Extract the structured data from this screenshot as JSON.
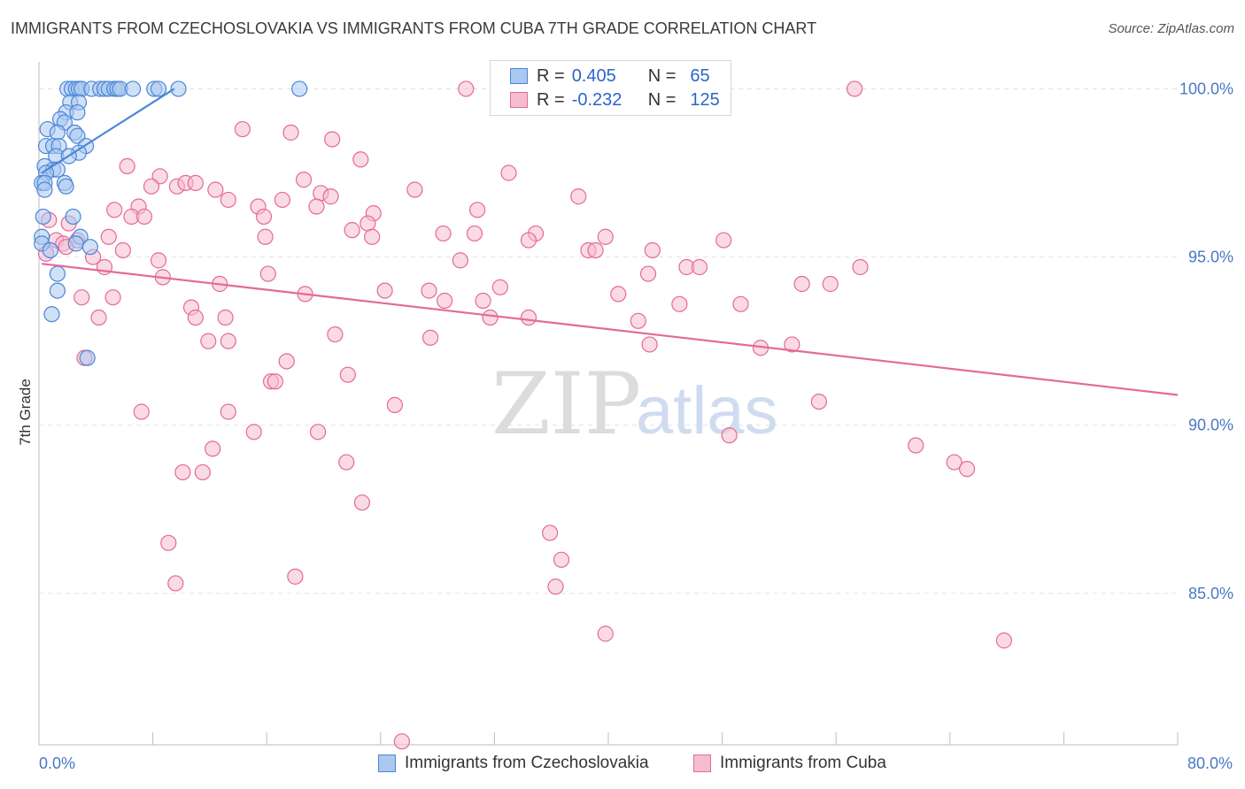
{
  "title": "IMMIGRANTS FROM CZECHOSLOVAKIA VS IMMIGRANTS FROM CUBA 7TH GRADE CORRELATION CHART",
  "source": "Source: ZipAtlas.com",
  "watermark": {
    "zip": "ZIP",
    "atlas": "atlas"
  },
  "legend": {
    "r_label": "R =",
    "n_label": "N =",
    "series": [
      {
        "r": "0.405",
        "n": "65",
        "color": "#4a86d6",
        "fill": "#aac8f0"
      },
      {
        "r": "-0.232",
        "n": "125",
        "color": "#e36a98",
        "fill": "#f6bcd0"
      }
    ]
  },
  "chart_data": {
    "type": "scatter",
    "xlabel": "",
    "ylabel": "7th Grade",
    "xlim": [
      0,
      80
    ],
    "ylim": [
      80.5,
      100.8
    ],
    "x_tick_labels": [
      "0.0%",
      "80.0%"
    ],
    "y_ticks": [
      85,
      90,
      95,
      100
    ],
    "y_tick_labels": [
      "85.0%",
      "90.0%",
      "95.0%",
      "100.0%"
    ],
    "grid": true,
    "series": [
      {
        "name": "Immigrants from Czechoslovakia",
        "color": "#4a86d6",
        "fill": "#aac8f0",
        "trend": {
          "x": [
            0.2,
            9.5
          ],
          "y": [
            97.5,
            100.0
          ]
        },
        "points": [
          [
            2.0,
            100.0
          ],
          [
            2.3,
            100.0
          ],
          [
            2.6,
            100.0
          ],
          [
            2.8,
            100.0
          ],
          [
            3.0,
            100.0
          ],
          [
            3.7,
            100.0
          ],
          [
            4.3,
            100.0
          ],
          [
            4.6,
            100.0
          ],
          [
            4.9,
            100.0
          ],
          [
            5.3,
            100.0
          ],
          [
            5.5,
            100.0
          ],
          [
            5.7,
            100.0
          ],
          [
            6.6,
            100.0
          ],
          [
            8.1,
            100.0
          ],
          [
            8.4,
            100.0
          ],
          [
            9.8,
            100.0
          ],
          [
            18.3,
            100.0
          ],
          [
            2.2,
            99.6
          ],
          [
            2.8,
            99.6
          ],
          [
            1.9,
            99.3
          ],
          [
            2.7,
            99.3
          ],
          [
            1.5,
            99.1
          ],
          [
            1.8,
            99.0
          ],
          [
            0.6,
            98.8
          ],
          [
            1.3,
            98.7
          ],
          [
            2.5,
            98.7
          ],
          [
            2.7,
            98.6
          ],
          [
            0.5,
            98.3
          ],
          [
            1.0,
            98.3
          ],
          [
            1.4,
            98.3
          ],
          [
            3.3,
            98.3
          ],
          [
            2.8,
            98.1
          ],
          [
            1.2,
            98.0
          ],
          [
            2.1,
            98.0
          ],
          [
            0.4,
            97.7
          ],
          [
            1.0,
            97.6
          ],
          [
            1.3,
            97.6
          ],
          [
            0.5,
            97.5
          ],
          [
            0.2,
            97.2
          ],
          [
            0.4,
            97.2
          ],
          [
            1.8,
            97.2
          ],
          [
            1.9,
            97.1
          ],
          [
            0.4,
            97.0
          ],
          [
            0.3,
            96.2
          ],
          [
            2.4,
            96.2
          ],
          [
            0.2,
            95.6
          ],
          [
            2.9,
            95.6
          ],
          [
            0.2,
            95.4
          ],
          [
            2.6,
            95.4
          ],
          [
            3.6,
            95.3
          ],
          [
            0.8,
            95.2
          ],
          [
            1.3,
            94.5
          ],
          [
            1.3,
            94.0
          ],
          [
            0.9,
            93.3
          ],
          [
            3.4,
            92.0
          ]
        ]
      },
      {
        "name": "Immigrants from Cuba",
        "color": "#e36a98",
        "fill": "#f6bcd0",
        "trend": {
          "x": [
            0.2,
            80.0
          ],
          "y": [
            94.8,
            90.9
          ]
        },
        "points": [
          [
            30.0,
            100.0
          ],
          [
            57.3,
            100.0
          ],
          [
            14.3,
            98.8
          ],
          [
            17.7,
            98.7
          ],
          [
            20.6,
            98.5
          ],
          [
            22.6,
            97.9
          ],
          [
            6.2,
            97.7
          ],
          [
            33.0,
            97.5
          ],
          [
            8.5,
            97.4
          ],
          [
            18.6,
            97.3
          ],
          [
            7.9,
            97.1
          ],
          [
            9.7,
            97.1
          ],
          [
            10.3,
            97.2
          ],
          [
            11.0,
            97.2
          ],
          [
            12.4,
            97.0
          ],
          [
            19.8,
            96.9
          ],
          [
            26.4,
            97.0
          ],
          [
            20.5,
            96.8
          ],
          [
            13.3,
            96.7
          ],
          [
            17.1,
            96.7
          ],
          [
            37.9,
            96.8
          ],
          [
            5.3,
            96.4
          ],
          [
            7.0,
            96.5
          ],
          [
            15.4,
            96.5
          ],
          [
            19.5,
            96.5
          ],
          [
            30.8,
            96.4
          ],
          [
            6.5,
            96.2
          ],
          [
            7.4,
            96.2
          ],
          [
            15.8,
            96.2
          ],
          [
            23.5,
            96.3
          ],
          [
            0.7,
            96.1
          ],
          [
            2.1,
            96.0
          ],
          [
            23.1,
            96.0
          ],
          [
            22.0,
            95.8
          ],
          [
            28.4,
            95.7
          ],
          [
            30.6,
            95.7
          ],
          [
            34.9,
            95.7
          ],
          [
            4.9,
            95.6
          ],
          [
            15.9,
            95.6
          ],
          [
            23.4,
            95.6
          ],
          [
            1.2,
            95.5
          ],
          [
            2.7,
            95.5
          ],
          [
            34.4,
            95.5
          ],
          [
            39.8,
            95.6
          ],
          [
            48.1,
            95.5
          ],
          [
            1.7,
            95.4
          ],
          [
            1.9,
            95.3
          ],
          [
            5.9,
            95.2
          ],
          [
            38.6,
            95.2
          ],
          [
            39.1,
            95.2
          ],
          [
            43.1,
            95.2
          ],
          [
            0.5,
            95.1
          ],
          [
            3.8,
            95.0
          ],
          [
            29.6,
            94.9
          ],
          [
            8.4,
            94.9
          ],
          [
            4.6,
            94.7
          ],
          [
            45.5,
            94.7
          ],
          [
            46.4,
            94.7
          ],
          [
            57.7,
            94.7
          ],
          [
            16.1,
            94.5
          ],
          [
            42.8,
            94.5
          ],
          [
            8.7,
            94.4
          ],
          [
            12.7,
            94.2
          ],
          [
            32.4,
            94.1
          ],
          [
            53.6,
            94.2
          ],
          [
            55.6,
            94.2
          ],
          [
            24.3,
            94.0
          ],
          [
            27.4,
            94.0
          ],
          [
            18.7,
            93.9
          ],
          [
            40.7,
            93.9
          ],
          [
            3.0,
            93.8
          ],
          [
            5.2,
            93.8
          ],
          [
            28.5,
            93.7
          ],
          [
            31.2,
            93.7
          ],
          [
            45.0,
            93.6
          ],
          [
            49.3,
            93.6
          ],
          [
            10.7,
            93.5
          ],
          [
            4.2,
            93.2
          ],
          [
            11.0,
            93.2
          ],
          [
            13.1,
            93.2
          ],
          [
            31.7,
            93.2
          ],
          [
            34.4,
            93.2
          ],
          [
            42.1,
            93.1
          ],
          [
            20.8,
            92.7
          ],
          [
            27.5,
            92.6
          ],
          [
            11.9,
            92.5
          ],
          [
            13.3,
            92.5
          ],
          [
            42.9,
            92.4
          ],
          [
            50.7,
            92.3
          ],
          [
            52.9,
            92.4
          ],
          [
            3.2,
            92.0
          ],
          [
            17.4,
            91.9
          ],
          [
            21.7,
            91.5
          ],
          [
            16.3,
            91.3
          ],
          [
            16.6,
            91.3
          ],
          [
            7.2,
            90.4
          ],
          [
            13.3,
            90.4
          ],
          [
            25.0,
            90.6
          ],
          [
            54.8,
            90.7
          ],
          [
            15.1,
            89.8
          ],
          [
            19.6,
            89.8
          ],
          [
            48.5,
            89.7
          ],
          [
            12.2,
            89.3
          ],
          [
            61.6,
            89.4
          ],
          [
            21.6,
            88.9
          ],
          [
            64.3,
            88.9
          ],
          [
            65.2,
            88.7
          ],
          [
            10.1,
            88.6
          ],
          [
            11.5,
            88.6
          ],
          [
            22.7,
            87.7
          ],
          [
            35.9,
            86.8
          ],
          [
            9.1,
            86.5
          ],
          [
            36.7,
            86.0
          ],
          [
            18.0,
            85.5
          ],
          [
            9.6,
            85.3
          ],
          [
            36.3,
            85.2
          ],
          [
            39.8,
            83.8
          ],
          [
            67.8,
            83.6
          ],
          [
            25.5,
            80.6
          ]
        ]
      }
    ]
  }
}
